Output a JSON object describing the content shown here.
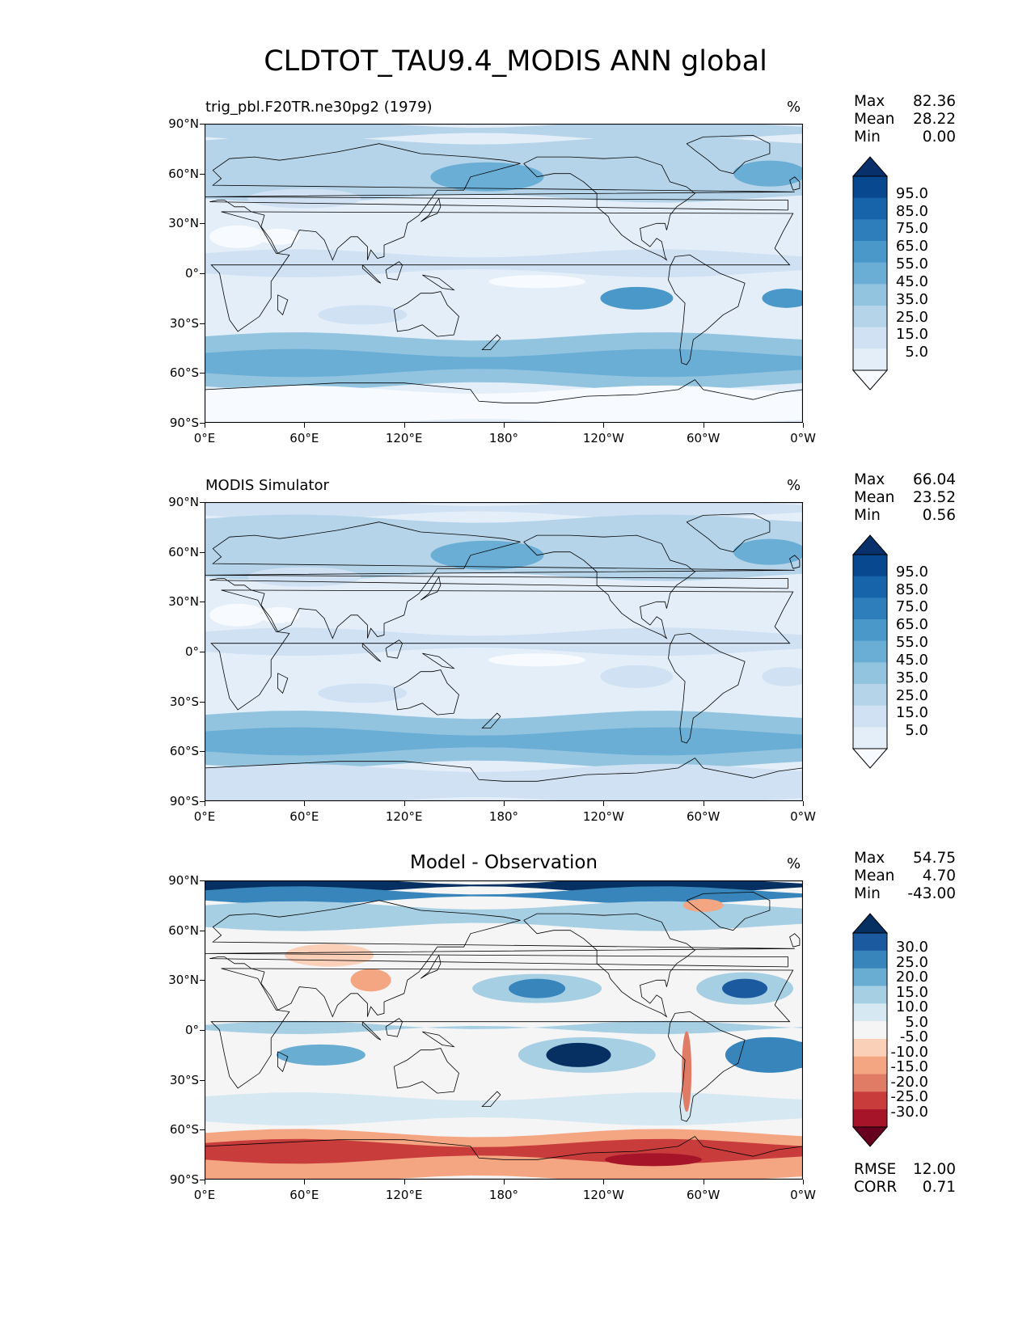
{
  "title": "CLDTOT_TAU9.4_MODIS ANN global",
  "axes": {
    "lat_ticks": [
      "90°N",
      "60°N",
      "30°N",
      "0°",
      "30°S",
      "60°S",
      "90°S"
    ],
    "lon_ticks": [
      "0°E",
      "60°E",
      "120°E",
      "180°",
      "120°W",
      "60°W",
      "0°W"
    ]
  },
  "panels": [
    {
      "id": "test",
      "left_title": "trig_pbl.F20TR.ne30pg2 (1979)",
      "center_title": "",
      "unit": "%",
      "stats": [
        {
          "key": "Max",
          "value": "82.36"
        },
        {
          "key": "Mean",
          "value": "28.22"
        },
        {
          "key": "Min",
          "value": "0.00"
        }
      ],
      "colorbar_labels": [
        "95.0",
        "85.0",
        "75.0",
        "65.0",
        "55.0",
        "45.0",
        "35.0",
        "25.0",
        "15.0",
        "5.0"
      ],
      "colors": [
        "#f7fbff",
        "#e3eef9",
        "#cfe1f2",
        "#b5d4e9",
        "#93c4df",
        "#6aaed6",
        "#4a98c9",
        "#2e7ebc",
        "#1764ab",
        "#08488e",
        "#08306b"
      ]
    },
    {
      "id": "ref",
      "left_title": "MODIS Simulator",
      "center_title": "",
      "unit": "%",
      "stats": [
        {
          "key": "Max",
          "value": "66.04"
        },
        {
          "key": "Mean",
          "value": "23.52"
        },
        {
          "key": "Min",
          "value": "0.56"
        }
      ],
      "colorbar_labels": [
        "95.0",
        "85.0",
        "75.0",
        "65.0",
        "55.0",
        "45.0",
        "35.0",
        "25.0",
        "15.0",
        "5.0"
      ],
      "colors": [
        "#f7fbff",
        "#e3eef9",
        "#cfe1f2",
        "#b5d4e9",
        "#93c4df",
        "#6aaed6",
        "#4a98c9",
        "#2e7ebc",
        "#1764ab",
        "#08488e",
        "#08306b"
      ]
    },
    {
      "id": "diff",
      "left_title": "",
      "center_title": "Model - Observation",
      "unit": "%",
      "stats": [
        {
          "key": "Max",
          "value": "54.75"
        },
        {
          "key": "Mean",
          "value": "4.70"
        },
        {
          "key": "Min",
          "value": "-43.00"
        }
      ],
      "extra_stats": [
        {
          "key": "RMSE",
          "value": "12.00"
        },
        {
          "key": "CORR",
          "value": "0.71"
        }
      ],
      "colorbar_labels": [
        "30.0",
        "25.0",
        "20.0",
        "15.0",
        "10.0",
        "5.0",
        "-5.0",
        "-10.0",
        "-15.0",
        "-20.0",
        "-25.0",
        "-30.0"
      ],
      "colors": [
        "#67001f",
        "#a51429",
        "#c93c3c",
        "#e07b65",
        "#f4a582",
        "#fbd0b9",
        "#f5f5f5",
        "#d6e8f2",
        "#a6cfe4",
        "#6aadd3",
        "#3885bc",
        "#1c5aa0",
        "#053061"
      ]
    }
  ]
}
